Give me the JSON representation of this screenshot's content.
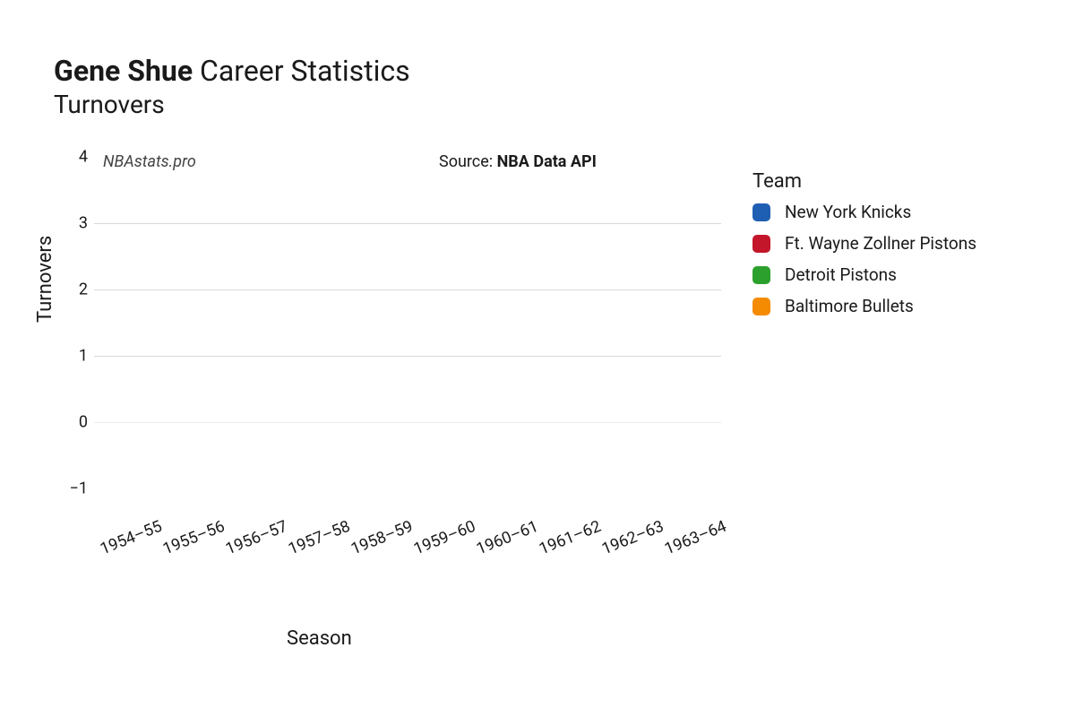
{
  "title": {
    "player_name": "Gene Shue",
    "suffix": "Career Statistics",
    "subtitle": "Turnovers"
  },
  "watermark": "NBAstats.pro",
  "source_prefix": "Source: ",
  "source_name": "NBA Data API",
  "chart": {
    "type": "bar",
    "ylabel": "Turnovers",
    "xlabel": "Season",
    "ylim": [
      -1,
      4
    ],
    "yticks": [
      -1,
      0,
      1,
      2,
      3,
      4
    ],
    "ytick_labels": [
      "−1",
      "0",
      "1",
      "2",
      "3",
      "4"
    ],
    "grid_lines": [
      {
        "value": 0,
        "color": "#ececec"
      },
      {
        "value": 1,
        "color": "#d9d9d9"
      },
      {
        "value": 2,
        "color": "#d9d9d9"
      },
      {
        "value": 3,
        "color": "#d9d9d9"
      }
    ],
    "background_color": "#ffffff",
    "axis_fontsize": 18,
    "label_fontsize": 22,
    "categories": [
      "1954–55",
      "1955–56",
      "1956–57",
      "1957–58",
      "1958–59",
      "1959–60",
      "1960–61",
      "1961–62",
      "1962–63",
      "1963–64"
    ],
    "xtick_rotation_deg": -22,
    "values": []
  },
  "legend": {
    "title": "Team",
    "items": [
      {
        "label": "New York Knicks",
        "color": "#1f5fb3"
      },
      {
        "label": "Ft. Wayne Zollner Pistons",
        "color": "#c4162a"
      },
      {
        "label": "Detroit Pistons",
        "color": "#2ca02c"
      },
      {
        "label": "Baltimore Bullets",
        "color": "#f58b00"
      }
    ]
  }
}
